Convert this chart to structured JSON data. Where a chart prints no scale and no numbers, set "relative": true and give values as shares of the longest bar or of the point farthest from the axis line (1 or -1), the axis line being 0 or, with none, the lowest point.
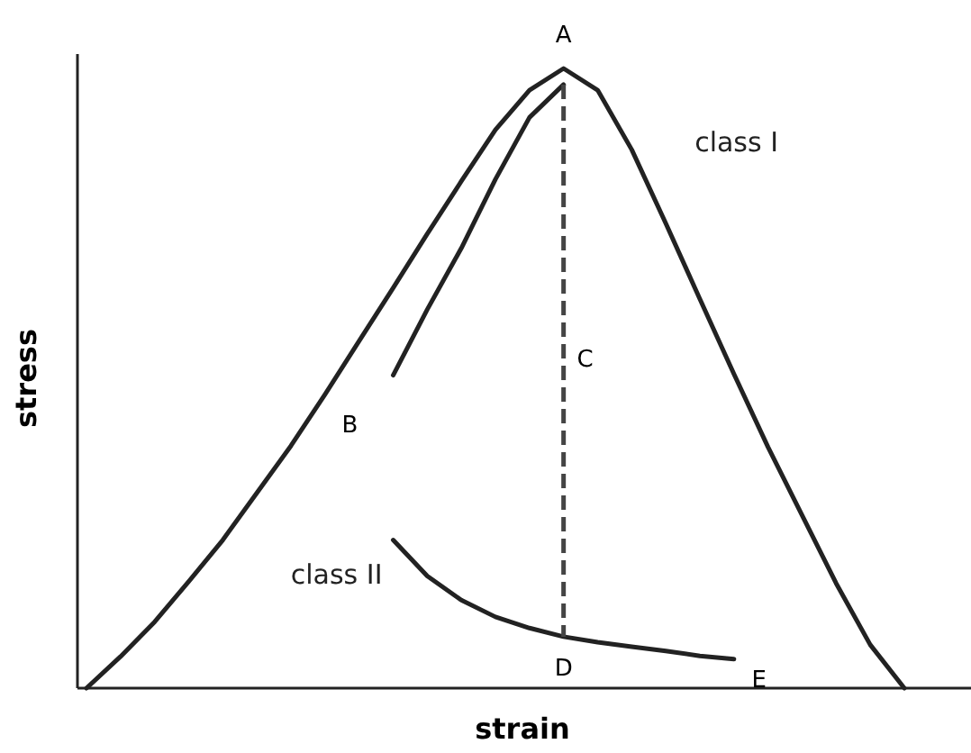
{
  "chart_data": {
    "type": "line",
    "relative": true,
    "xlabel": "strain",
    "ylabel": "stress",
    "categories": [
      null,
      null,
      null,
      null,
      null,
      null,
      null,
      null,
      null,
      null,
      null,
      null,
      null,
      null,
      null,
      null,
      null,
      null,
      null,
      null,
      null,
      null,
      null,
      null,
      null
    ],
    "series": [
      {
        "name": "class I",
        "color": "#222222",
        "values": [
          0,
          0.051,
          0.107,
          0.172,
          0.239,
          0.315,
          0.391,
          0.474,
          0.56,
          0.646,
          0.733,
          0.818,
          0.901,
          0.965,
          1,
          0.965,
          0.869,
          0.75,
          0.628,
          0.507,
          0.389,
          0.279,
          0.169,
          0.07,
          0
        ]
      },
      {
        "color": "#222222",
        "values": [
          null,
          null,
          null,
          null,
          null,
          null,
          null,
          null,
          null,
          0.505,
          0.611,
          0.71,
          0.821,
          0.921,
          0.974,
          null,
          null,
          null,
          null,
          null,
          null,
          null,
          null,
          null,
          null
        ]
      },
      {
        "name": "class II",
        "color": "#222222",
        "values": [
          null,
          null,
          null,
          null,
          null,
          null,
          null,
          null,
          null,
          0.239,
          0.181,
          0.142,
          0.115,
          0.097,
          0.083,
          0.074,
          0.067,
          0.06,
          0.052,
          0.047,
          null,
          null,
          null,
          null,
          null
        ]
      }
    ],
    "annotations": [
      "A",
      "B",
      "C",
      "D",
      "E"
    ]
  }
}
